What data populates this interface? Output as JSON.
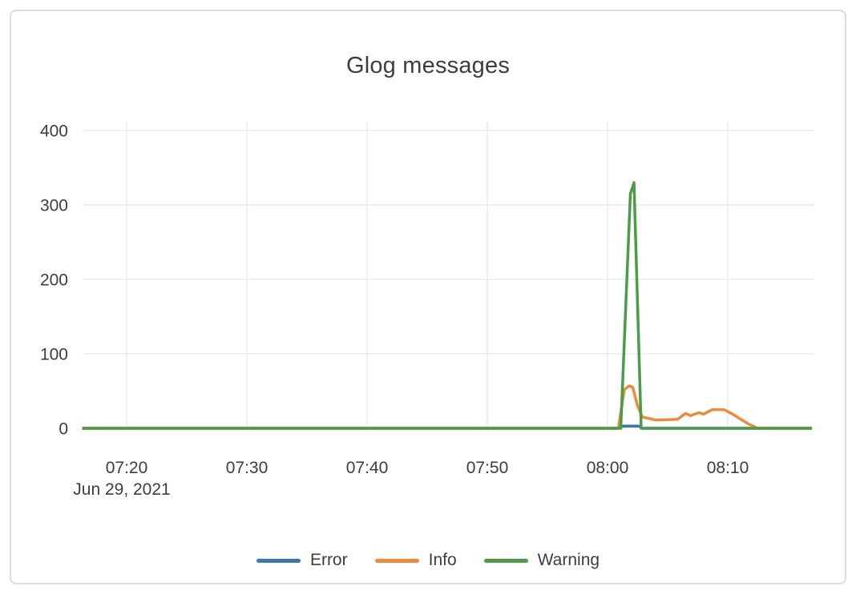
{
  "card": {
    "background": "#ffffff",
    "border_color": "#dcdcdc"
  },
  "chart_data": {
    "type": "line",
    "title": "Glog messages",
    "xlabel": "",
    "ylabel": "",
    "text_color": "#3d3d3d",
    "grid_color": "#ececec",
    "grid": true,
    "legend_position": "bottom",
    "x_axis": {
      "unit": "time (HH:MM), minutes after 07:00",
      "tick_minutes": [
        20,
        30,
        40,
        50,
        60,
        70
      ],
      "tick_labels": [
        "07:20",
        "07:30",
        "07:40",
        "07:50",
        "08:00",
        "08:10"
      ],
      "date_label": "Jun 29, 2021",
      "range_minutes": [
        16.3,
        77
      ]
    },
    "y_axis": {
      "tick_values": [
        0,
        100,
        200,
        300,
        400
      ],
      "tick_labels": [
        "0",
        "100",
        "200",
        "300",
        "400"
      ],
      "range": [
        0,
        412
      ]
    },
    "series": [
      {
        "name": "Error",
        "color": "#3b76af",
        "points": [
          [
            16.3,
            0
          ],
          [
            60.9,
            0
          ],
          [
            61.3,
            3
          ],
          [
            62.6,
            3
          ],
          [
            62.9,
            0
          ],
          [
            77,
            0
          ]
        ]
      },
      {
        "name": "Info",
        "color": "#ef8a3b",
        "points": [
          [
            16.3,
            0
          ],
          [
            60.9,
            0
          ],
          [
            61.4,
            52
          ],
          [
            61.8,
            57
          ],
          [
            62.1,
            55
          ],
          [
            62.5,
            30
          ],
          [
            62.9,
            15
          ],
          [
            63.5,
            13
          ],
          [
            64.1,
            11
          ],
          [
            65.8,
            12
          ],
          [
            66.5,
            20
          ],
          [
            66.9,
            17
          ],
          [
            67.6,
            21
          ],
          [
            68,
            19
          ],
          [
            68.7,
            25
          ],
          [
            69.7,
            25
          ],
          [
            70.3,
            20
          ],
          [
            70.9,
            14
          ],
          [
            71.7,
            6
          ],
          [
            72.5,
            0
          ],
          [
            77,
            0
          ]
        ]
      },
      {
        "name": "Warning",
        "color": "#4a9d45",
        "points": [
          [
            16.3,
            0
          ],
          [
            61.1,
            0
          ],
          [
            61.9,
            315
          ],
          [
            62.2,
            330
          ],
          [
            62.8,
            0
          ],
          [
            77,
            0
          ]
        ]
      }
    ]
  }
}
